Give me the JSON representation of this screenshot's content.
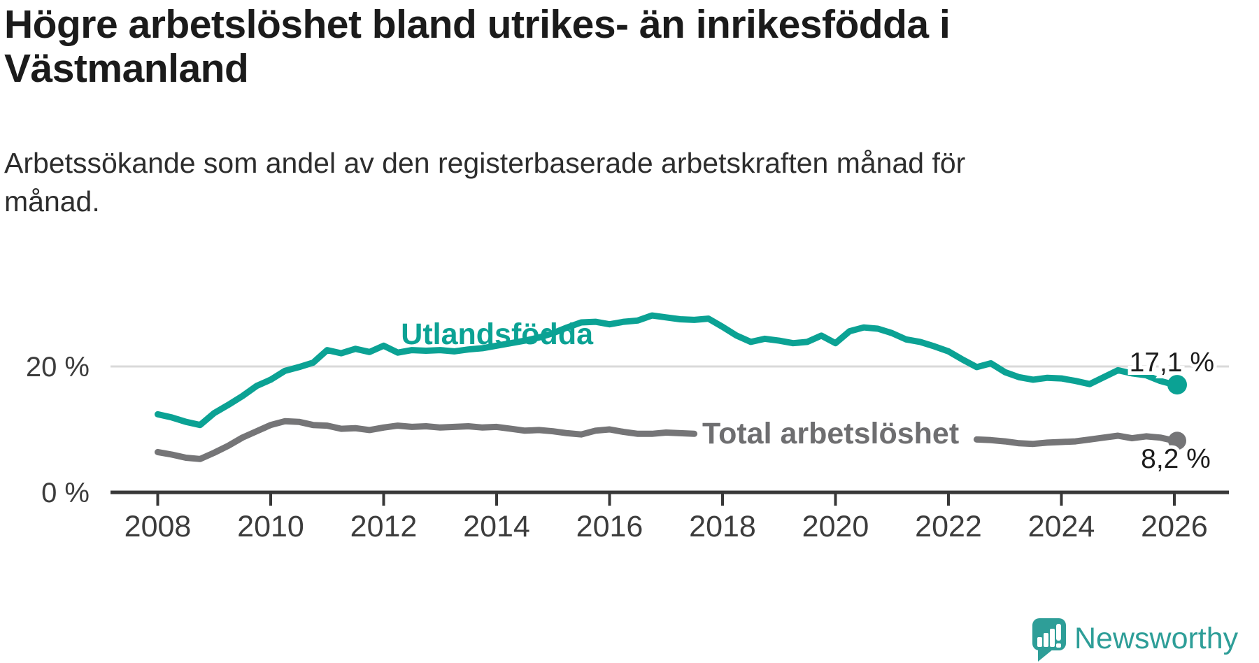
{
  "header": {
    "title_lines": [
      "Högre arbetslöshet bland utrikes- än inrikesfödda i",
      "Västmanland"
    ],
    "subtitle_lines": [
      "Arbetssökande som andel av den registerbaserade arbetskraften månad för",
      "månad."
    ]
  },
  "chart_data": {
    "type": "line",
    "title": "Högre arbetslöshet bland utrikes- än inrikesfödda i Västmanland",
    "subtitle": "Arbetssökande som andel av den registerbaserade arbetskraften månad för månad.",
    "x_unit": "year (quarterly digitized samples)",
    "x_start": 2008,
    "x_step": 0.25,
    "x_range": [
      2008,
      2026
    ],
    "ylim": [
      0,
      31
    ],
    "grid_y_line_at": 20,
    "legend_position": "inline-labels-on-lines",
    "x_ticks": [
      "2008",
      "2010",
      "2012",
      "2014",
      "2016",
      "2018",
      "2020",
      "2022",
      "2024",
      "2026"
    ],
    "x_tick_years": [
      2008,
      2010,
      2012,
      2014,
      2016,
      2018,
      2020,
      2022,
      2024,
      2026
    ],
    "y_ticks": [
      {
        "value": 0,
        "label": "0 %"
      },
      {
        "value": 20,
        "label": "20 %"
      }
    ],
    "series": [
      {
        "name": "Utlandsfödda",
        "color": "#0BA294",
        "end_value": 17.1,
        "end_label": "17,1 %",
        "values": [
          12.4,
          11.9,
          11.2,
          10.7,
          12.6,
          13.9,
          15.3,
          16.9,
          17.9,
          19.3,
          19.9,
          20.6,
          22.6,
          22.1,
          22.8,
          22.3,
          23.3,
          22.2,
          22.6,
          22.5,
          22.6,
          22.4,
          22.7,
          22.9,
          23.3,
          23.7,
          24.1,
          24.6,
          25.3,
          26.2,
          27.0,
          27.1,
          26.7,
          27.1,
          27.3,
          28.1,
          27.8,
          27.5,
          27.4,
          27.6,
          26.3,
          24.9,
          23.9,
          24.4,
          24.1,
          23.7,
          23.9,
          24.9,
          23.7,
          25.6,
          26.2,
          26.0,
          25.3,
          24.3,
          23.9,
          23.2,
          22.4,
          21.1,
          19.9,
          20.5,
          19.1,
          18.3,
          17.9,
          18.2,
          18.1,
          17.7,
          17.2,
          18.3,
          19.4,
          18.9,
          18.6,
          17.7,
          17.1
        ]
      },
      {
        "name": "Total arbetslöshet",
        "color": "#757577",
        "end_value": 8.2,
        "end_label": "8,2 %",
        "values": [
          6.4,
          6.0,
          5.5,
          5.3,
          6.3,
          7.4,
          8.7,
          9.7,
          10.7,
          11.3,
          11.2,
          10.7,
          10.6,
          10.1,
          10.2,
          9.9,
          10.3,
          10.6,
          10.4,
          10.5,
          10.3,
          10.4,
          10.5,
          10.3,
          10.4,
          10.1,
          9.8,
          9.9,
          9.7,
          9.4,
          9.2,
          9.8,
          10.0,
          9.6,
          9.3,
          9.3,
          9.5,
          9.4,
          9.3,
          9.4,
          9.2,
          9.1,
          8.9,
          9.0,
          9.0,
          8.9,
          8.8,
          9.0,
          9.2,
          9.8,
          9.9,
          10.0,
          9.7,
          9.5,
          9.2,
          9.0,
          8.7,
          8.5,
          8.4,
          8.3,
          8.1,
          7.8,
          7.7,
          7.9,
          8.0,
          8.1,
          8.4,
          8.7,
          9.0,
          8.6,
          8.9,
          8.7,
          8.2
        ]
      }
    ]
  },
  "colors": {
    "accent_teal": "#0BA294",
    "line_gray": "#757577",
    "axis": "#383838",
    "tick_label": "#3c3c3c",
    "gridline": "#d9d9d9",
    "title_text": "#1b1b1b",
    "subtitle_text": "#2d2d2d",
    "value_label_text": "#1c1c1c",
    "logo_teal": "#2E9E98"
  },
  "footer": {
    "brand": "Newsworthy"
  }
}
